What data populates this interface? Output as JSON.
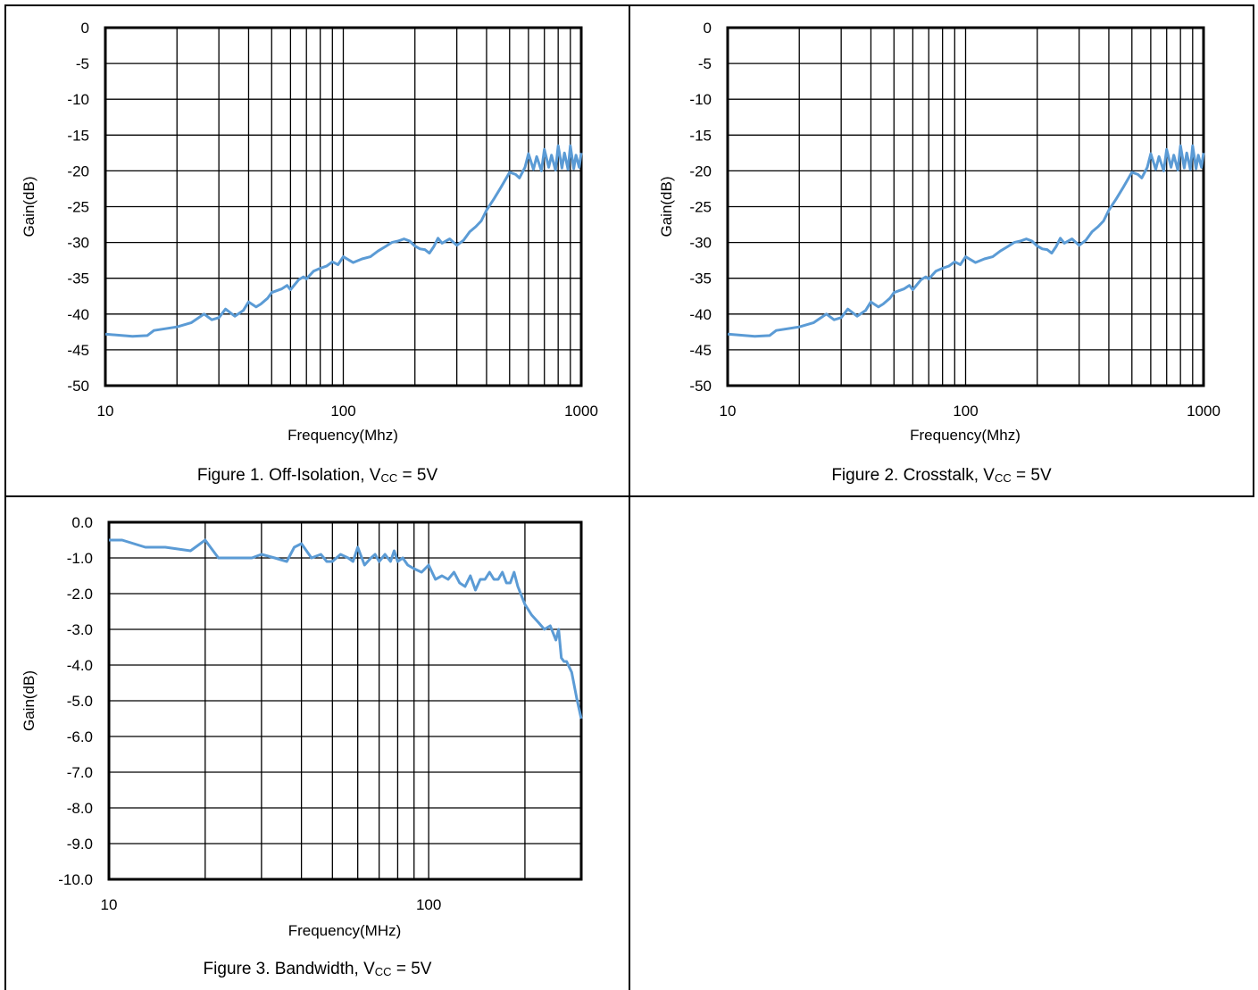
{
  "series_color": "#5b9bd5",
  "captions": [
    {
      "text": "Figure 1. Off-Isolation, V",
      "sub": "CC",
      "after": " = 5V"
    },
    {
      "text": "Figure 2. Crosstalk, V",
      "sub": "CC",
      "after": " = 5V"
    },
    {
      "text": "Figure 3. Bandwidth, V",
      "sub": "CC",
      "after": " = 5V"
    }
  ],
  "chart_data": [
    {
      "type": "line",
      "title": "",
      "xlabel": "Frequency(Mhz)",
      "ylabel": "Gain(dB)",
      "x_scale": "log",
      "xlim": [
        10,
        1000
      ],
      "ylim": [
        -50,
        0
      ],
      "x_ticks": [
        "10",
        "100",
        "1000"
      ],
      "y_ticks": [
        "0",
        "-5",
        "-10",
        "-15",
        "-20",
        "-25",
        "-30",
        "-35",
        "-40",
        "-45",
        "-50"
      ],
      "grid": true,
      "series": [
        {
          "x": [
            10,
            13,
            15,
            16,
            20,
            23,
            26,
            28,
            30,
            32,
            35,
            38,
            40,
            43,
            45,
            48,
            50,
            55,
            58,
            60,
            65,
            68,
            70,
            75,
            80,
            85,
            90,
            95,
            100,
            110,
            120,
            130,
            140,
            150,
            160,
            170,
            180,
            190,
            200,
            210,
            220,
            230,
            240,
            250,
            260,
            280,
            300,
            320,
            340,
            360,
            380,
            400,
            430,
            460,
            500,
            530,
            550,
            580,
            600,
            630,
            650,
            680,
            700,
            730,
            750,
            780,
            800,
            830,
            850,
            880,
            900,
            930,
            950,
            980,
            1000
          ],
          "y": [
            -42.8,
            -43.1,
            -43.0,
            -42.3,
            -41.8,
            -41.2,
            -40.0,
            -40.8,
            -40.5,
            -39.3,
            -40.3,
            -39.5,
            -38.3,
            -39.0,
            -38.6,
            -37.8,
            -37.0,
            -36.5,
            -36.0,
            -36.6,
            -35.2,
            -34.8,
            -35.1,
            -34.0,
            -33.6,
            -33.3,
            -32.7,
            -33.1,
            -32.0,
            -32.8,
            -32.3,
            -32.0,
            -31.2,
            -30.6,
            -30.0,
            -29.8,
            -29.5,
            -29.8,
            -30.5,
            -30.9,
            -31.0,
            -31.5,
            -30.6,
            -29.4,
            -30.1,
            -29.5,
            -30.4,
            -29.7,
            -28.5,
            -27.8,
            -27.0,
            -25.5,
            -23.9,
            -22.3,
            -20.2,
            -20.5,
            -21.0,
            -19.5,
            -17.6,
            -19.8,
            -18.0,
            -20.0,
            -17.0,
            -19.5,
            -17.8,
            -19.9,
            -16.5,
            -19.6,
            -17.5,
            -19.8,
            -16.5,
            -19.7,
            -17.8,
            -19.5,
            -17.5
          ]
        }
      ]
    },
    {
      "type": "line",
      "title": "",
      "xlabel": "Frequency(Mhz)",
      "ylabel": "Gain(dB)",
      "x_scale": "log",
      "xlim": [
        10,
        1000
      ],
      "ylim": [
        -50,
        0
      ],
      "x_ticks": [
        "10",
        "100",
        "1000"
      ],
      "y_ticks": [
        "0",
        "-5",
        "-10",
        "-15",
        "-20",
        "-25",
        "-30",
        "-35",
        "-40",
        "-45",
        "-50"
      ],
      "grid": true,
      "series": [
        {
          "x": [
            10,
            13,
            15,
            16,
            20,
            23,
            26,
            28,
            30,
            32,
            35,
            38,
            40,
            43,
            45,
            48,
            50,
            55,
            58,
            60,
            65,
            68,
            70,
            75,
            80,
            85,
            90,
            95,
            100,
            110,
            120,
            130,
            140,
            150,
            160,
            170,
            180,
            190,
            200,
            210,
            220,
            230,
            240,
            250,
            260,
            280,
            300,
            320,
            340,
            360,
            380,
            400,
            430,
            460,
            500,
            530,
            550,
            580,
            600,
            630,
            650,
            680,
            700,
            730,
            750,
            780,
            800,
            830,
            850,
            880,
            900,
            930,
            950,
            980,
            1000
          ],
          "y": [
            -42.8,
            -43.1,
            -43.0,
            -42.3,
            -41.8,
            -41.2,
            -40.0,
            -40.8,
            -40.5,
            -39.3,
            -40.3,
            -39.5,
            -38.3,
            -39.0,
            -38.6,
            -37.8,
            -37.0,
            -36.5,
            -36.0,
            -36.6,
            -35.2,
            -34.8,
            -35.1,
            -34.0,
            -33.6,
            -33.3,
            -32.7,
            -33.1,
            -32.0,
            -32.8,
            -32.3,
            -32.0,
            -31.2,
            -30.6,
            -30.0,
            -29.8,
            -29.5,
            -29.8,
            -30.5,
            -30.9,
            -31.0,
            -31.5,
            -30.6,
            -29.4,
            -30.1,
            -29.5,
            -30.4,
            -29.7,
            -28.5,
            -27.8,
            -27.0,
            -25.5,
            -23.9,
            -22.3,
            -20.2,
            -20.5,
            -21.0,
            -19.5,
            -17.6,
            -19.8,
            -18.0,
            -20.0,
            -17.0,
            -19.5,
            -17.8,
            -19.9,
            -16.5,
            -19.6,
            -17.5,
            -19.8,
            -16.5,
            -19.7,
            -17.8,
            -19.5,
            -17.5
          ]
        }
      ]
    },
    {
      "type": "line",
      "title": "",
      "xlabel": "Frequency(MHz)",
      "ylabel": "Gain(dB)",
      "x_scale": "log",
      "xlim": [
        10,
        300
      ],
      "ylim": [
        -10,
        0
      ],
      "x_ticks": [
        "10",
        "100"
      ],
      "y_ticks": [
        "0.0",
        "-1.0",
        "-2.0",
        "-3.0",
        "-4.0",
        "-5.0",
        "-6.0",
        "-7.0",
        "-8.0",
        "-9.0",
        "-10.0"
      ],
      "grid": true,
      "series": [
        {
          "x": [
            10,
            11,
            13,
            15,
            18,
            20,
            22,
            25,
            28,
            30,
            33,
            36,
            38,
            40,
            43,
            46,
            48,
            50,
            53,
            56,
            58,
            60,
            63,
            66,
            68,
            70,
            73,
            76,
            78,
            80,
            83,
            86,
            90,
            95,
            100,
            105,
            110,
            115,
            120,
            125,
            130,
            135,
            140,
            145,
            150,
            155,
            160,
            165,
            170,
            175,
            180,
            185,
            190,
            200,
            210,
            220,
            230,
            240,
            250,
            255,
            260,
            265,
            270,
            280,
            290,
            300
          ],
          "y": [
            -0.5,
            -0.5,
            -0.7,
            -0.7,
            -0.8,
            -0.5,
            -1.0,
            -1.0,
            -1.0,
            -0.9,
            -1.0,
            -1.1,
            -0.7,
            -0.6,
            -1.0,
            -0.9,
            -1.1,
            -1.1,
            -0.9,
            -1.0,
            -1.1,
            -0.7,
            -1.2,
            -1.0,
            -0.9,
            -1.1,
            -0.9,
            -1.1,
            -0.8,
            -1.1,
            -1.0,
            -1.2,
            -1.3,
            -1.4,
            -1.2,
            -1.6,
            -1.5,
            -1.6,
            -1.4,
            -1.7,
            -1.8,
            -1.5,
            -1.9,
            -1.6,
            -1.6,
            -1.4,
            -1.6,
            -1.6,
            -1.4,
            -1.7,
            -1.7,
            -1.4,
            -1.8,
            -2.3,
            -2.6,
            -2.8,
            -3.0,
            -2.9,
            -3.3,
            -3.0,
            -3.8,
            -3.9,
            -3.9,
            -4.2,
            -4.9,
            -5.5
          ]
        }
      ]
    }
  ]
}
